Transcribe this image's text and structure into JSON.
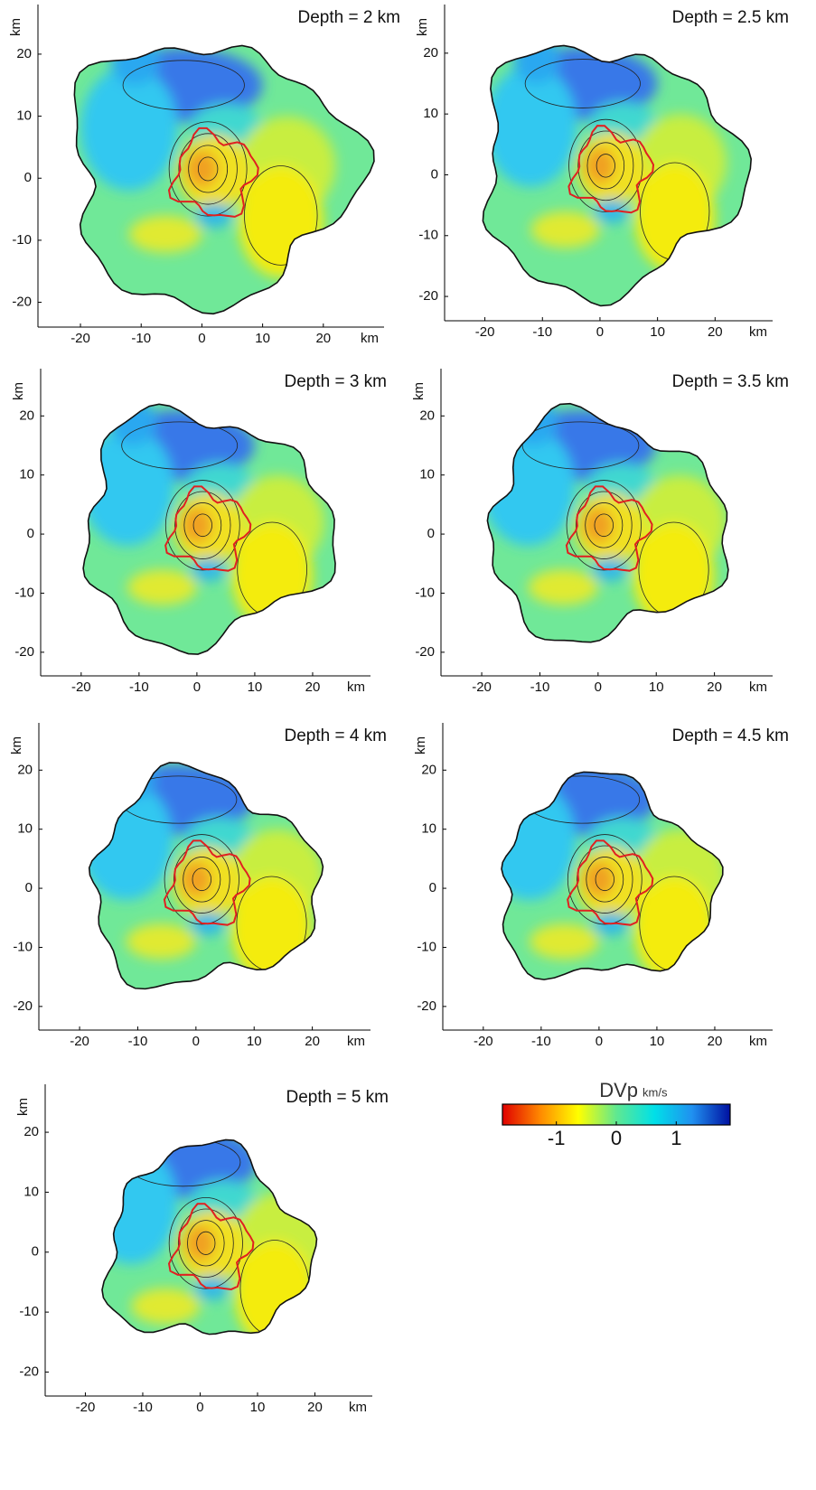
{
  "chart_data": [
    {
      "type": "contour-map",
      "title": "Depth = 2 km",
      "x_label": "km",
      "y_label": "km",
      "xlim": [
        -27,
        30
      ],
      "ylim": [
        -24,
        28
      ],
      "xticks": [
        -20,
        -10,
        0,
        10,
        20
      ],
      "yticks": [
        -20,
        -10,
        0,
        10,
        20
      ]
    },
    {
      "type": "contour-map",
      "title": "Depth = 2.5 km",
      "x_label": "km",
      "y_label": "km",
      "xlim": [
        -27,
        30
      ],
      "ylim": [
        -24,
        28
      ],
      "xticks": [
        -20,
        -10,
        0,
        10,
        20
      ],
      "yticks": [
        -20,
        -10,
        0,
        10,
        20
      ]
    },
    {
      "type": "contour-map",
      "title": "Depth = 3 km",
      "x_label": "km",
      "y_label": "km",
      "xlim": [
        -27,
        30
      ],
      "ylim": [
        -24,
        28
      ],
      "xticks": [
        -20,
        -10,
        0,
        10,
        20
      ],
      "yticks": [
        -20,
        -10,
        0,
        10,
        20
      ]
    },
    {
      "type": "contour-map",
      "title": "Depth = 3.5 km",
      "x_label": "km",
      "y_label": "km",
      "xlim": [
        -27,
        30
      ],
      "ylim": [
        -24,
        28
      ],
      "xticks": [
        -20,
        -10,
        0,
        10,
        20
      ],
      "yticks": [
        -20,
        -10,
        0,
        10,
        20
      ]
    },
    {
      "type": "contour-map",
      "title": "Depth = 4 km",
      "x_label": "km",
      "y_label": "km",
      "xlim": [
        -27,
        30
      ],
      "ylim": [
        -24,
        28
      ],
      "xticks": [
        -20,
        -10,
        0,
        10,
        20
      ],
      "yticks": [
        -20,
        -10,
        0,
        10,
        20
      ]
    },
    {
      "type": "contour-map",
      "title": "Depth = 4.5 km",
      "x_label": "km",
      "y_label": "km",
      "xlim": [
        -27,
        30
      ],
      "ylim": [
        -24,
        28
      ],
      "xticks": [
        -20,
        -10,
        0,
        10,
        20
      ],
      "yticks": [
        -20,
        -10,
        0,
        10,
        20
      ]
    },
    {
      "type": "contour-map",
      "title": "Depth = 5 km",
      "x_label": "km",
      "y_label": "km",
      "xlim": [
        -27,
        30
      ],
      "ylim": [
        -24,
        28
      ],
      "xticks": [
        -20,
        -10,
        0,
        10,
        20
      ],
      "yticks": [
        -20,
        -10,
        0,
        10,
        20
      ]
    }
  ],
  "colorbar": {
    "title": "DVp",
    "unit": "km/s",
    "lim": [
      -1.9,
      1.9
    ],
    "ticks": [
      -1,
      0,
      1
    ],
    "colors": [
      "#e00000",
      "#ff8a00",
      "#ffff00",
      "#60e890",
      "#00e0e8",
      "#2090f0",
      "#0010a0"
    ]
  }
}
